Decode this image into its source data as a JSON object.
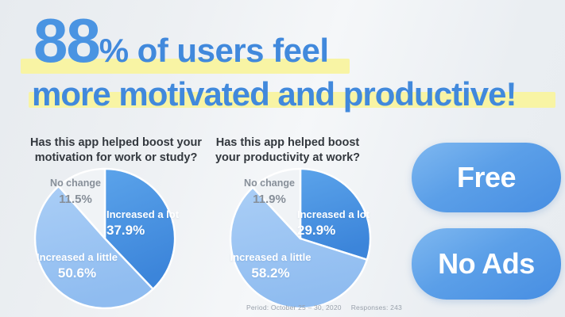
{
  "headline": {
    "stat_number": "88",
    "percent_sign": "%",
    "line1_rest": "of users feel",
    "line2": "more motivated and productive!"
  },
  "chart_data": [
    {
      "type": "pie",
      "title": "Has this app helped boost your motivation for work or study?",
      "title_lines": [
        "Has this app helped boost your",
        "motivation for work or study?"
      ],
      "start_at": "12-oclock-clockwise",
      "slices": [
        {
          "label": "Increased a lot",
          "value": 37.9,
          "display": "37.9%",
          "color": "dark_blue"
        },
        {
          "label": "Increased a little",
          "value": 50.6,
          "display": "50.6%",
          "color": "light_blue"
        },
        {
          "label": "No change",
          "value": 11.5,
          "display": "11.5%",
          "color": "gray"
        }
      ]
    },
    {
      "type": "pie",
      "title": "Has this app helped boost your productivity at work?",
      "title_lines": [
        "Has this app helped boost",
        "your productivity at work?"
      ],
      "start_at": "12-oclock-clockwise",
      "slices": [
        {
          "label": "Increased a lot",
          "value": 29.9,
          "display": "29.9%",
          "color": "dark_blue"
        },
        {
          "label": "Increased a little",
          "value": 58.2,
          "display": "58.2%",
          "color": "light_blue"
        },
        {
          "label": "No change",
          "value": 11.9,
          "display": "11.9%",
          "color": "gray"
        }
      ]
    }
  ],
  "buttons": {
    "free_label": "Free",
    "no_ads_label": "No Ads"
  },
  "footer": {
    "period": "Period: October 25 – 30, 2020",
    "responses": "Responses: 243"
  },
  "colors": {
    "headline_blue": "#4189dc",
    "highlight_yellow": "#f8f4a4",
    "slice_dark_blue": [
      "#5ba3ea",
      "#3c85da"
    ],
    "slice_light_blue": [
      "#aacef6",
      "#8fbcf0"
    ],
    "slice_gray": "#f0f3f6",
    "button_blue": [
      "#7fb8f0",
      "#478ee2"
    ],
    "title_text": "#33383e",
    "muted_label_text": "#878f99",
    "footer_text": "#99a1ab"
  }
}
